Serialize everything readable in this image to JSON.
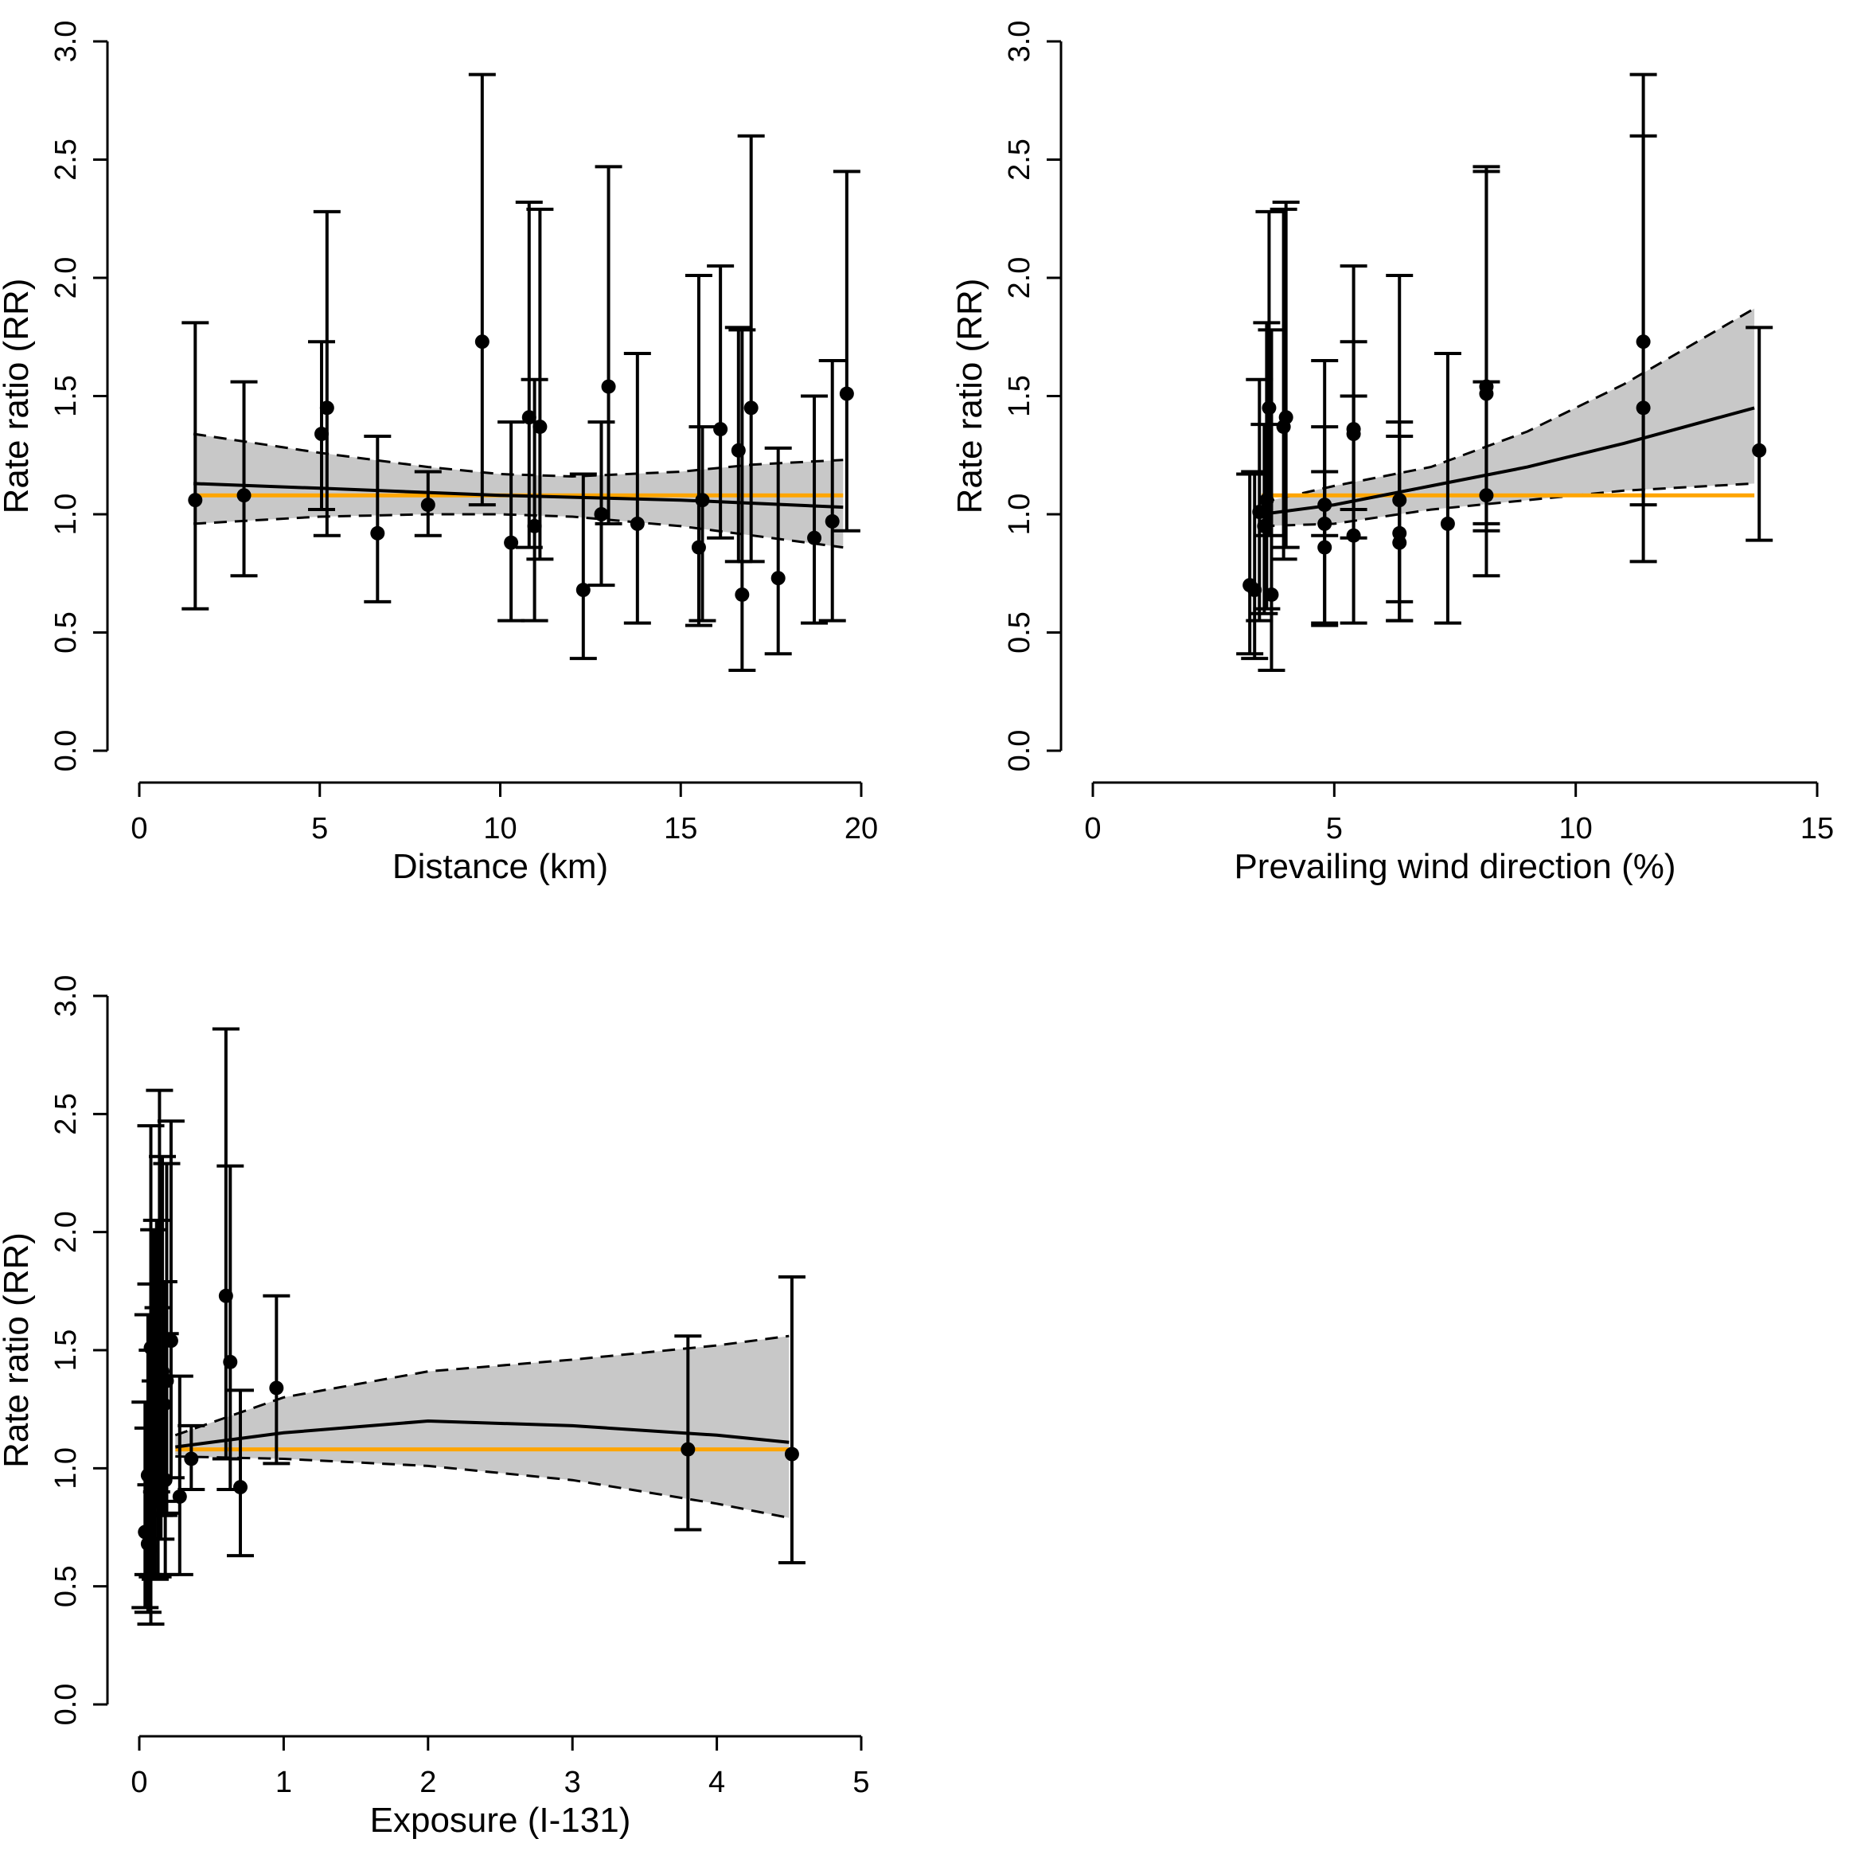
{
  "figure": {
    "colors": {
      "point": "#000000",
      "band": "#c8c8c8",
      "fit": "#000000",
      "reference": "#ffa500"
    }
  },
  "chart_data": [
    {
      "type": "scatter",
      "xlabel": "Distance (km)",
      "ylabel": "Rate ratio (RR)",
      "xlim": [
        0,
        20
      ],
      "ylim": [
        0,
        3
      ],
      "xticks": [
        "0",
        "5",
        "10",
        "15",
        "20"
      ],
      "yticks": [
        "0.0",
        "0.5",
        "1.0",
        "1.5",
        "2.0",
        "2.5",
        "3.0"
      ],
      "grid": false,
      "reference_line": 1.08,
      "fit": [
        [
          1.5,
          1.13
        ],
        [
          5,
          1.11
        ],
        [
          10,
          1.08
        ],
        [
          15,
          1.06
        ],
        [
          19.5,
          1.03
        ]
      ],
      "band_upper": [
        [
          1.5,
          1.34
        ],
        [
          5,
          1.26
        ],
        [
          8,
          1.2
        ],
        [
          10,
          1.17
        ],
        [
          12,
          1.16
        ],
        [
          15,
          1.18
        ],
        [
          17,
          1.21
        ],
        [
          19.5,
          1.23
        ]
      ],
      "band_lower": [
        [
          1.5,
          0.96
        ],
        [
          5,
          0.99
        ],
        [
          8,
          1.0
        ],
        [
          10,
          1.0
        ],
        [
          12,
          0.99
        ],
        [
          15,
          0.95
        ],
        [
          17,
          0.91
        ],
        [
          19.5,
          0.86
        ]
      ],
      "points": [
        {
          "x": 1.55,
          "y": 1.06,
          "lo": 0.6,
          "hi": 1.81
        },
        {
          "x": 2.9,
          "y": 1.08,
          "lo": 0.74,
          "hi": 1.56
        },
        {
          "x": 5.05,
          "y": 1.34,
          "lo": 1.02,
          "hi": 1.73
        },
        {
          "x": 5.2,
          "y": 1.45,
          "lo": 0.91,
          "hi": 2.28
        },
        {
          "x": 6.6,
          "y": 0.92,
          "lo": 0.63,
          "hi": 1.33
        },
        {
          "x": 8.0,
          "y": 1.04,
          "lo": 0.91,
          "hi": 1.18
        },
        {
          "x": 9.5,
          "y": 1.73,
          "lo": 1.04,
          "hi": 2.86
        },
        {
          "x": 10.3,
          "y": 0.88,
          "lo": 0.55,
          "hi": 1.39
        },
        {
          "x": 10.8,
          "y": 1.41,
          "lo": 0.86,
          "hi": 2.32
        },
        {
          "x": 10.95,
          "y": 0.95,
          "lo": 0.55,
          "hi": 1.57
        },
        {
          "x": 11.1,
          "y": 1.37,
          "lo": 0.81,
          "hi": 2.29
        },
        {
          "x": 12.3,
          "y": 0.68,
          "lo": 0.39,
          "hi": 1.17
        },
        {
          "x": 12.8,
          "y": 1.0,
          "lo": 0.7,
          "hi": 1.39
        },
        {
          "x": 13.0,
          "y": 1.54,
          "lo": 0.96,
          "hi": 2.47
        },
        {
          "x": 13.8,
          "y": 0.96,
          "lo": 0.54,
          "hi": 1.68
        },
        {
          "x": 15.5,
          "y": 0.86,
          "lo": 0.53,
          "hi": 2.01
        },
        {
          "x": 15.6,
          "y": 1.06,
          "lo": 0.55,
          "hi": 1.37
        },
        {
          "x": 16.1,
          "y": 1.36,
          "lo": 0.9,
          "hi": 2.05
        },
        {
          "x": 16.6,
          "y": 1.27,
          "lo": 0.8,
          "hi": 1.79
        },
        {
          "x": 16.7,
          "y": 0.66,
          "lo": 0.34,
          "hi": 1.78
        },
        {
          "x": 16.95,
          "y": 1.45,
          "lo": 0.8,
          "hi": 2.6
        },
        {
          "x": 17.7,
          "y": 0.73,
          "lo": 0.41,
          "hi": 1.28
        },
        {
          "x": 18.7,
          "y": 0.9,
          "lo": 0.54,
          "hi": 1.5
        },
        {
          "x": 19.2,
          "y": 0.97,
          "lo": 0.55,
          "hi": 1.65
        },
        {
          "x": 19.6,
          "y": 1.51,
          "lo": 0.93,
          "hi": 2.45
        }
      ]
    },
    {
      "type": "scatter",
      "xlabel": "Prevailing wind direction (%)",
      "ylabel": "Rate ratio (RR)",
      "xlim": [
        0,
        15
      ],
      "ylim": [
        0,
        3
      ],
      "xticks": [
        "0",
        "5",
        "10",
        "15"
      ],
      "yticks": [
        "0.0",
        "0.5",
        "1.0",
        "1.5",
        "2.0",
        "2.5",
        "3.0"
      ],
      "grid": false,
      "reference_line": 1.08,
      "fit": [
        [
          3.5,
          1.0
        ],
        [
          5,
          1.04
        ],
        [
          7,
          1.12
        ],
        [
          9,
          1.2
        ],
        [
          11,
          1.3
        ],
        [
          13.7,
          1.45
        ]
      ],
      "band_upper": [
        [
          3.5,
          1.05
        ],
        [
          5,
          1.12
        ],
        [
          7,
          1.2
        ],
        [
          9,
          1.35
        ],
        [
          11,
          1.55
        ],
        [
          13.7,
          1.87
        ]
      ],
      "band_lower": [
        [
          3.5,
          0.95
        ],
        [
          5,
          0.96
        ],
        [
          7,
          1.02
        ],
        [
          9,
          1.06
        ],
        [
          11,
          1.1
        ],
        [
          13.7,
          1.13
        ]
      ],
      "points": [
        {
          "x": 3.25,
          "y": 0.7,
          "lo": 0.41,
          "hi": 1.17
        },
        {
          "x": 3.35,
          "y": 0.68,
          "lo": 0.39,
          "hi": 1.18
        },
        {
          "x": 3.45,
          "y": 1.01,
          "lo": 0.55,
          "hi": 1.57
        },
        {
          "x": 3.55,
          "y": 0.95,
          "lo": 0.58,
          "hi": 1.38
        },
        {
          "x": 3.6,
          "y": 1.06,
          "lo": 0.6,
          "hi": 1.81
        },
        {
          "x": 3.65,
          "y": 1.45,
          "lo": 0.91,
          "hi": 2.28
        },
        {
          "x": 3.7,
          "y": 0.66,
          "lo": 0.34,
          "hi": 1.78
        },
        {
          "x": 3.95,
          "y": 1.37,
          "lo": 0.81,
          "hi": 2.29
        },
        {
          "x": 4.0,
          "y": 1.41,
          "lo": 0.86,
          "hi": 2.32
        },
        {
          "x": 4.8,
          "y": 0.86,
          "lo": 0.53,
          "hi": 1.37
        },
        {
          "x": 4.8,
          "y": 0.96,
          "lo": 0.54,
          "hi": 1.65
        },
        {
          "x": 4.8,
          "y": 1.04,
          "lo": 0.91,
          "hi": 1.18
        },
        {
          "x": 5.4,
          "y": 0.91,
          "lo": 0.54,
          "hi": 1.5
        },
        {
          "x": 5.4,
          "y": 1.34,
          "lo": 0.9,
          "hi": 2.05
        },
        {
          "x": 5.4,
          "y": 1.36,
          "lo": 1.02,
          "hi": 1.73
        },
        {
          "x": 6.35,
          "y": 0.88,
          "lo": 0.55,
          "hi": 1.39
        },
        {
          "x": 6.35,
          "y": 0.92,
          "lo": 0.63,
          "hi": 1.33
        },
        {
          "x": 6.35,
          "y": 1.06,
          "lo": 0.55,
          "hi": 2.01
        },
        {
          "x": 7.35,
          "y": 0.96,
          "lo": 0.54,
          "hi": 1.68
        },
        {
          "x": 8.15,
          "y": 1.08,
          "lo": 0.74,
          "hi": 2.45
        },
        {
          "x": 8.15,
          "y": 1.51,
          "lo": 0.93,
          "hi": 2.47
        },
        {
          "x": 8.15,
          "y": 1.54,
          "lo": 0.96,
          "hi": 1.56
        },
        {
          "x": 11.4,
          "y": 1.45,
          "lo": 0.8,
          "hi": 2.6
        },
        {
          "x": 11.4,
          "y": 1.73,
          "lo": 1.04,
          "hi": 2.86
        },
        {
          "x": 13.8,
          "y": 1.27,
          "lo": 0.89,
          "hi": 1.79
        }
      ]
    },
    {
      "type": "scatter",
      "xlabel": "Exposure (I-131)",
      "ylabel": "Rate ratio (RR)",
      "xlim": [
        0,
        5
      ],
      "ylim": [
        0,
        3
      ],
      "xticks": [
        "0",
        "1",
        "2",
        "3",
        "4",
        "5"
      ],
      "yticks": [
        "0.0",
        "0.5",
        "1.0",
        "1.5",
        "2.0",
        "2.5",
        "3.0"
      ],
      "grid": false,
      "reference_line": 1.08,
      "fit": [
        [
          0.25,
          1.09
        ],
        [
          1,
          1.15
        ],
        [
          2,
          1.2
        ],
        [
          3,
          1.18
        ],
        [
          4,
          1.14
        ],
        [
          4.5,
          1.11
        ]
      ],
      "band_upper": [
        [
          0.25,
          1.14
        ],
        [
          1,
          1.3
        ],
        [
          2,
          1.41
        ],
        [
          3,
          1.46
        ],
        [
          4,
          1.52
        ],
        [
          4.5,
          1.56
        ]
      ],
      "band_lower": [
        [
          0.25,
          1.05
        ],
        [
          1,
          1.04
        ],
        [
          2,
          1.01
        ],
        [
          3,
          0.95
        ],
        [
          4,
          0.85
        ],
        [
          4.5,
          0.79
        ]
      ],
      "points": [
        {
          "x": 0.04,
          "y": 0.73,
          "lo": 0.41,
          "hi": 1.28
        },
        {
          "x": 0.06,
          "y": 0.68,
          "lo": 0.39,
          "hi": 1.17
        },
        {
          "x": 0.06,
          "y": 0.97,
          "lo": 0.55,
          "hi": 1.65
        },
        {
          "x": 0.08,
          "y": 0.66,
          "lo": 0.34,
          "hi": 1.78
        },
        {
          "x": 0.08,
          "y": 1.51,
          "lo": 0.93,
          "hi": 2.45
        },
        {
          "x": 0.09,
          "y": 0.9,
          "lo": 0.54,
          "hi": 1.5
        },
        {
          "x": 0.1,
          "y": 1.06,
          "lo": 0.55,
          "hi": 2.01
        },
        {
          "x": 0.11,
          "y": 0.86,
          "lo": 0.53,
          "hi": 1.37
        },
        {
          "x": 0.12,
          "y": 1.36,
          "lo": 0.9,
          "hi": 2.05
        },
        {
          "x": 0.13,
          "y": 0.96,
          "lo": 0.54,
          "hi": 1.68
        },
        {
          "x": 0.14,
          "y": 1.45,
          "lo": 0.8,
          "hi": 2.6
        },
        {
          "x": 0.15,
          "y": 1.0,
          "lo": 0.7,
          "hi": 1.39
        },
        {
          "x": 0.16,
          "y": 1.41,
          "lo": 0.86,
          "hi": 2.32
        },
        {
          "x": 0.17,
          "y": 1.27,
          "lo": 0.8,
          "hi": 1.79
        },
        {
          "x": 0.18,
          "y": 0.95,
          "lo": 0.55,
          "hi": 1.57
        },
        {
          "x": 0.19,
          "y": 1.37,
          "lo": 0.81,
          "hi": 2.29
        },
        {
          "x": 0.22,
          "y": 1.54,
          "lo": 0.96,
          "hi": 2.47
        },
        {
          "x": 0.28,
          "y": 0.88,
          "lo": 0.55,
          "hi": 1.39
        },
        {
          "x": 0.36,
          "y": 1.04,
          "lo": 0.91,
          "hi": 1.18
        },
        {
          "x": 0.6,
          "y": 1.73,
          "lo": 1.04,
          "hi": 2.86
        },
        {
          "x": 0.63,
          "y": 1.45,
          "lo": 0.91,
          "hi": 2.28
        },
        {
          "x": 0.7,
          "y": 0.92,
          "lo": 0.63,
          "hi": 1.33
        },
        {
          "x": 0.95,
          "y": 1.34,
          "lo": 1.02,
          "hi": 1.73
        },
        {
          "x": 3.8,
          "y": 1.08,
          "lo": 0.74,
          "hi": 1.56
        },
        {
          "x": 4.52,
          "y": 1.06,
          "lo": 0.6,
          "hi": 1.81
        }
      ]
    }
  ]
}
